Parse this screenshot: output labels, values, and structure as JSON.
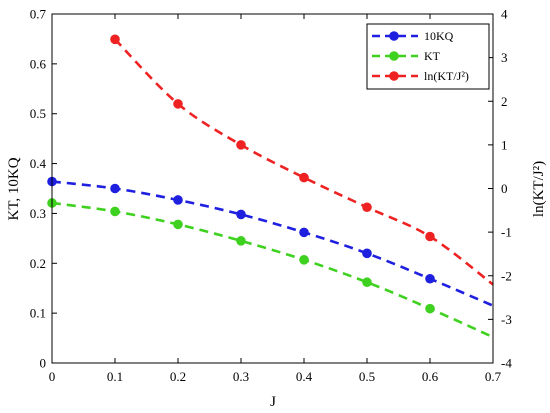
{
  "chart_data": {
    "type": "line",
    "xlabel": "J",
    "ylabel_left": "KT, 10KQ",
    "ylabel_right": "ln(KT/J²)",
    "xlim": [
      0,
      0.7
    ],
    "ylim_left": [
      0,
      0.7
    ],
    "ylim_right": [
      -4,
      4
    ],
    "x_ticks": [
      "0",
      "0.1",
      "0.2",
      "0.3",
      "0.4",
      "0.5",
      "0.6",
      "0.7"
    ],
    "y_ticks_left": [
      "0",
      "0.1",
      "0.2",
      "0.3",
      "0.4",
      "0.5",
      "0.6",
      "0.7"
    ],
    "y_ticks_right": [
      "-4",
      "-3",
      "-2",
      "-1",
      "0",
      "1",
      "2",
      "3",
      "4"
    ],
    "grid": false,
    "legend_position": "top-right",
    "series": [
      {
        "name": "10KQ",
        "axis": "left",
        "color": "#1f1fe0",
        "marker": "circle",
        "points_x": [
          0,
          0.1,
          0.2,
          0.3,
          0.4,
          0.5,
          0.6
        ],
        "points_y": [
          0.364,
          0.35,
          0.327,
          0.298,
          0.262,
          0.22,
          0.169
        ],
        "curve_x": [
          0,
          0.1,
          0.2,
          0.3,
          0.4,
          0.5,
          0.6,
          0.7
        ],
        "curve_y": [
          0.364,
          0.35,
          0.327,
          0.298,
          0.262,
          0.22,
          0.169,
          0.115
        ]
      },
      {
        "name": "KT",
        "axis": "left",
        "color": "#3fd11f",
        "marker": "circle",
        "points_x": [
          0,
          0.1,
          0.2,
          0.3,
          0.4,
          0.5,
          0.6
        ],
        "points_y": [
          0.321,
          0.304,
          0.278,
          0.245,
          0.207,
          0.162,
          0.109
        ],
        "curve_x": [
          0,
          0.1,
          0.2,
          0.3,
          0.4,
          0.5,
          0.6,
          0.7
        ],
        "curve_y": [
          0.321,
          0.304,
          0.278,
          0.245,
          0.207,
          0.162,
          0.109,
          0.052
        ]
      },
      {
        "name": "ln(KT/J²)",
        "axis": "right",
        "color": "#ee2222",
        "marker": "circle",
        "points_x": [
          0.1,
          0.2,
          0.3,
          0.4,
          0.5,
          0.6
        ],
        "points_y": [
          3.42,
          1.94,
          1.0,
          0.25,
          -0.43,
          -1.1
        ],
        "curve_x": [
          0.1,
          0.2,
          0.3,
          0.4,
          0.5,
          0.6,
          0.7
        ],
        "curve_y": [
          3.42,
          1.94,
          1.0,
          0.25,
          -0.43,
          -1.1,
          -2.2
        ]
      }
    ]
  }
}
